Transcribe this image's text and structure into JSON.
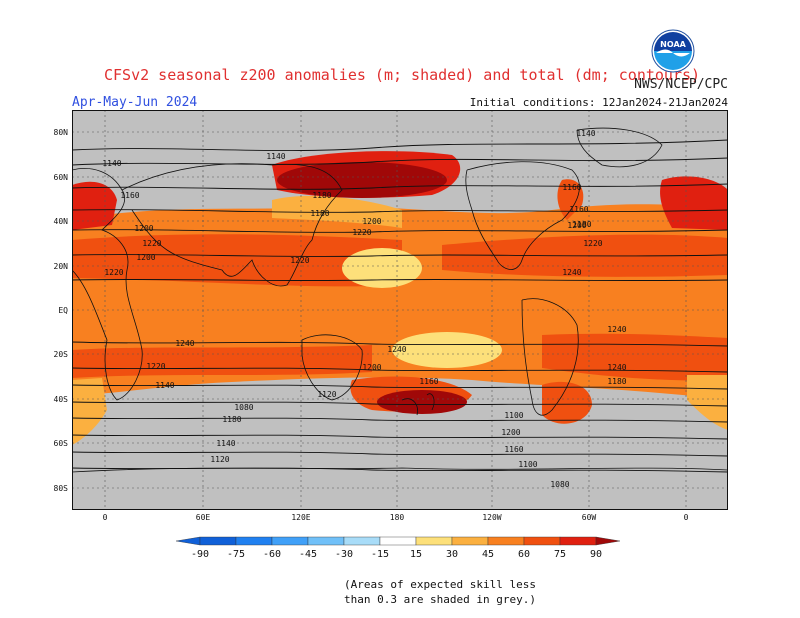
{
  "header": {
    "title": "CFSv2 seasonal z200 anomalies (m; shaded) and total (dm; contours)",
    "organization": "NWS/NCEP/CPC",
    "season": "Apr-May-Jun 2024",
    "initial_conditions": "Initial conditions: 12Jan2024-21Jan2024",
    "logo_text": "NOAA"
  },
  "map": {
    "lat_labels": [
      "80N",
      "60N",
      "40N",
      "20N",
      "EQ",
      "20S",
      "40S",
      "60S",
      "80S"
    ],
    "lon_labels": [
      "0",
      "60E",
      "120E",
      "180",
      "120W",
      "60W",
      "0"
    ],
    "skill_mask_color": "#c0c0c0",
    "contour_labels": [
      "1140",
      "1140",
      "1140",
      "1160",
      "1160",
      "1160",
      "1180",
      "1180",
      "1180",
      "1200",
      "1200",
      "1200",
      "1200",
      "1220",
      "1220",
      "1220",
      "1220",
      "1220",
      "1240",
      "1240",
      "1240",
      "1240",
      "1240",
      "1220",
      "1200",
      "1180",
      "1160",
      "1140",
      "1120",
      "1100",
      "1080",
      "1200",
      "1180",
      "1160",
      "1140",
      "1120",
      "1100",
      "1080"
    ]
  },
  "colorbar": {
    "labels": [
      "-90",
      "-75",
      "-60",
      "-45",
      "-30",
      "-15",
      "15",
      "30",
      "45",
      "60",
      "75",
      "90"
    ],
    "colors": [
      "#1060d8",
      "#2080f0",
      "#40a0f8",
      "#70c0f8",
      "#a8dcf8",
      "#ffffff",
      "#fde07a",
      "#fbb040",
      "#f88020",
      "#f05010",
      "#e02010",
      "#a00808"
    ]
  },
  "note": {
    "line1": "(Areas of expected skill less",
    "line2": "than 0.3 are shaded in grey.)"
  }
}
